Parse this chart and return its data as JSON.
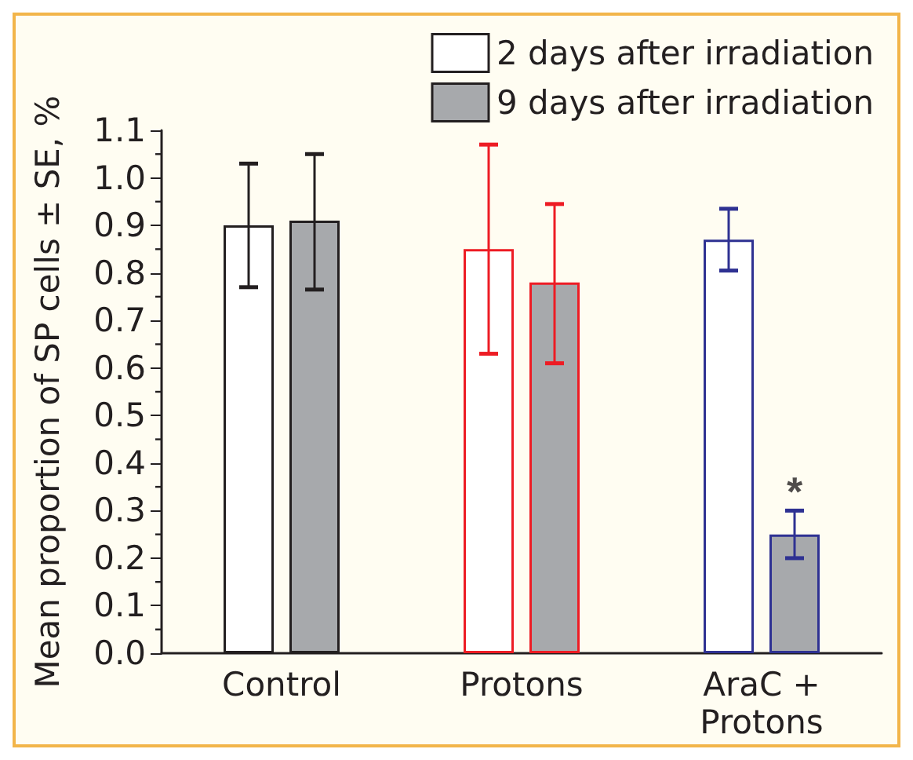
{
  "chart_data": {
    "type": "bar",
    "ylabel": "Mean proportion of SP cells ± SE, %",
    "categories": [
      "Control",
      "Protons",
      "AraC +\nProtons"
    ],
    "series": [
      {
        "name": "2 days after irradiation",
        "color": "#ffffff",
        "values": [
          0.9,
          0.85,
          0.87
        ],
        "errors": [
          [
            0.77,
            1.03
          ],
          [
            0.63,
            1.07
          ],
          [
            0.805,
            0.935
          ]
        ]
      },
      {
        "name": "9 days after irradiation",
        "color": "#a7a9ac",
        "values": [
          0.91,
          0.78,
          0.25
        ],
        "errors": [
          [
            0.765,
            1.05
          ],
          [
            0.61,
            0.945
          ],
          [
            0.2,
            0.3
          ]
        ]
      }
    ],
    "ylim": [
      0,
      1.1
    ],
    "yticks": [
      {
        "value": 0,
        "label": "0.0"
      },
      0.1,
      0.2,
      0.3,
      0.4,
      0.5,
      0.6,
      0.7,
      0.8,
      0.9,
      {
        "value": 1,
        "label": "1.0"
      },
      1.1
    ],
    "annotations": [
      "*"
    ],
    "legend": "top right",
    "grid": false
  }
}
